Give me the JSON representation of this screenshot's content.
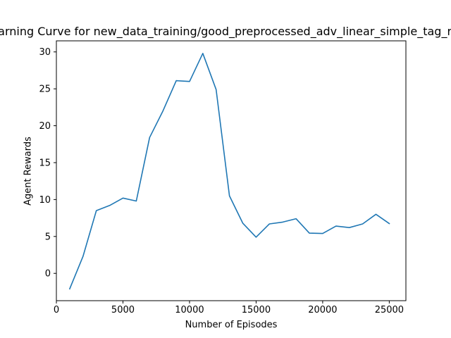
{
  "chart_data": {
    "type": "line",
    "title": "Learning Curve for new_data_training/good_preprocessed_adv_linear_simple_tag_run",
    "xlabel": "Number of Episodes",
    "ylabel": "Agent Rewards",
    "xlim": [
      0,
      26250
    ],
    "ylim": [
      -3.7,
      31.5
    ],
    "xticks": [
      0,
      5000,
      10000,
      15000,
      20000,
      25000
    ],
    "yticks": [
      0,
      5,
      10,
      15,
      20,
      25,
      30
    ],
    "grid": false,
    "line_color": "#1f77b4",
    "series": [
      {
        "x": [
          1000,
          2000,
          3000,
          4000,
          5000,
          6000,
          7000,
          8000,
          9000,
          10000,
          11000,
          12000,
          13000,
          14000,
          15000,
          16000,
          17000,
          18000,
          19000,
          20000,
          21000,
          22000,
          23000,
          24000,
          25000
        ],
        "values": [
          -2.1,
          2.3,
          8.5,
          9.2,
          10.2,
          9.8,
          18.4,
          22.0,
          26.1,
          26.0,
          29.8,
          24.9,
          10.5,
          6.8,
          4.9,
          6.7,
          6.95,
          7.4,
          5.45,
          5.4,
          6.4,
          6.2,
          6.7,
          8.0,
          6.75
        ]
      }
    ]
  }
}
